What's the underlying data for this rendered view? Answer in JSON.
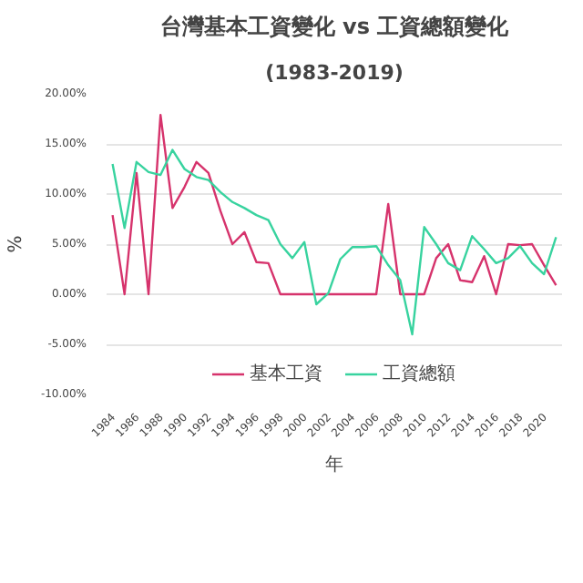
{
  "chart_data": {
    "type": "line",
    "title": "台灣基本工資變化 vs 工資總額變化",
    "subtitle": "(1983-2019)",
    "xlabel": "年",
    "ylabel": "%",
    "x": [
      1984,
      1985,
      1986,
      1987,
      1988,
      1989,
      1990,
      1991,
      1992,
      1993,
      1994,
      1995,
      1996,
      1997,
      1998,
      1999,
      2000,
      2001,
      2002,
      2003,
      2004,
      2005,
      2006,
      2007,
      2008,
      2009,
      2010,
      2011,
      2012,
      2013,
      2014,
      2015,
      2016,
      2017,
      2018,
      2019,
      2020,
      2021
    ],
    "series": [
      {
        "name": "基本工資",
        "color": "#d6336c",
        "values": [
          7.9,
          0,
          12.1,
          0,
          17.9,
          8.6,
          10.7,
          13.2,
          12.1,
          8.3,
          5.0,
          6.2,
          3.2,
          3.1,
          0,
          0,
          0,
          0,
          0,
          0,
          0,
          0,
          0,
          9.0,
          0,
          0,
          0,
          3.6,
          5.0,
          1.4,
          1.2,
          3.8,
          0,
          5.0,
          4.9,
          5.0,
          2.9,
          0.9
        ]
      },
      {
        "name": "工資總額",
        "color": "#38d39f",
        "values": [
          13.0,
          6.6,
          13.2,
          12.2,
          11.9,
          14.4,
          12.5,
          11.7,
          11.4,
          10.2,
          9.2,
          8.6,
          7.9,
          7.4,
          5.0,
          3.6,
          5.2,
          -1.0,
          0.1,
          3.5,
          4.7,
          4.7,
          4.8,
          2.9,
          1.4,
          -4.0,
          6.7,
          5.0,
          3.1,
          2.4,
          5.8,
          4.5,
          3.1,
          3.6,
          4.8,
          3.1,
          2.0,
          5.7
        ]
      }
    ],
    "xlim": [
      1983.5,
      2021.5
    ],
    "xticks": [
      1984,
      1986,
      1988,
      1990,
      1992,
      1994,
      1996,
      1998,
      2000,
      2002,
      2004,
      2006,
      2008,
      2010,
      2012,
      2014,
      2016,
      2018,
      2020
    ],
    "ylim": [
      -10,
      20
    ],
    "yticks": [
      {
        "value": -10,
        "label": "-10.00%"
      },
      {
        "value": -5,
        "label": "-5.00%"
      },
      {
        "value": 0,
        "label": "0.00%"
      },
      {
        "value": 5,
        "label": "5.00%"
      },
      {
        "value": 10,
        "label": "10.00%"
      },
      {
        "value": 15,
        "label": "15.00%"
      },
      {
        "value": 20,
        "label": "20.00%"
      }
    ],
    "grid": "y",
    "legend": "bottom",
    "marker": "none",
    "line_style": "solid"
  }
}
